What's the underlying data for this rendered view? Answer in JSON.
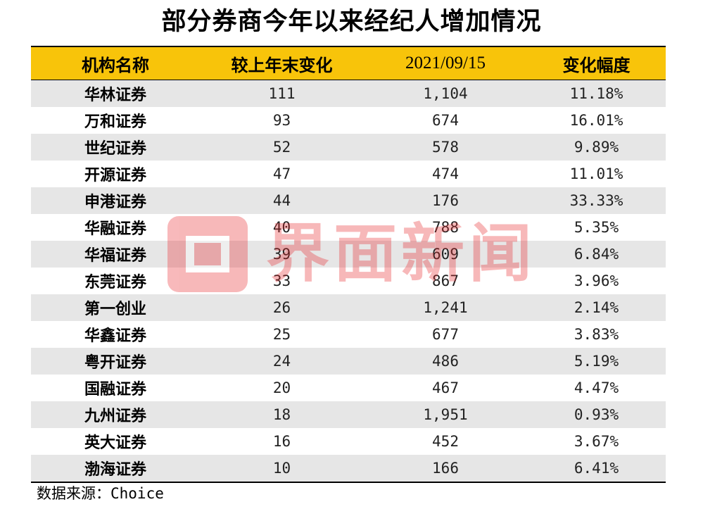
{
  "title": "部分券商今年以来经纪人增加情况",
  "table": {
    "headers": [
      "机构名称",
      "较上年末变化",
      "2021/09/15",
      "变化幅度"
    ],
    "rows": [
      {
        "name": "华林证券",
        "change": "111",
        "count": "1,104",
        "pct": "11.18%"
      },
      {
        "name": "万和证券",
        "change": "93",
        "count": "674",
        "pct": "16.01%"
      },
      {
        "name": "世纪证券",
        "change": "52",
        "count": "578",
        "pct": "9.89%"
      },
      {
        "name": "开源证券",
        "change": "47",
        "count": "474",
        "pct": "11.01%"
      },
      {
        "name": "申港证券",
        "change": "44",
        "count": "176",
        "pct": "33.33%"
      },
      {
        "name": "华融证券",
        "change": "40",
        "count": "788",
        "pct": "5.35%"
      },
      {
        "name": "华福证券",
        "change": "39",
        "count": "609",
        "pct": "6.84%"
      },
      {
        "name": "东莞证券",
        "change": "33",
        "count": "867",
        "pct": "3.96%"
      },
      {
        "name": "第一创业",
        "change": "26",
        "count": "1,241",
        "pct": "2.14%"
      },
      {
        "name": "华鑫证券",
        "change": "25",
        "count": "677",
        "pct": "3.83%"
      },
      {
        "name": "粤开证券",
        "change": "24",
        "count": "486",
        "pct": "5.19%"
      },
      {
        "name": "国融证券",
        "change": "20",
        "count": "467",
        "pct": "4.47%"
      },
      {
        "name": "九州证券",
        "change": "18",
        "count": "1,951",
        "pct": "0.93%"
      },
      {
        "name": "英大证券",
        "change": "16",
        "count": "452",
        "pct": "3.67%"
      },
      {
        "name": "渤海证券",
        "change": "10",
        "count": "166",
        "pct": "6.41%"
      }
    ]
  },
  "source": "数据来源：Choice",
  "watermark": {
    "text": "界面新闻",
    "color": "#e8262a"
  },
  "colors": {
    "header": "#f8c40a",
    "shade": "#e6e6e6"
  }
}
